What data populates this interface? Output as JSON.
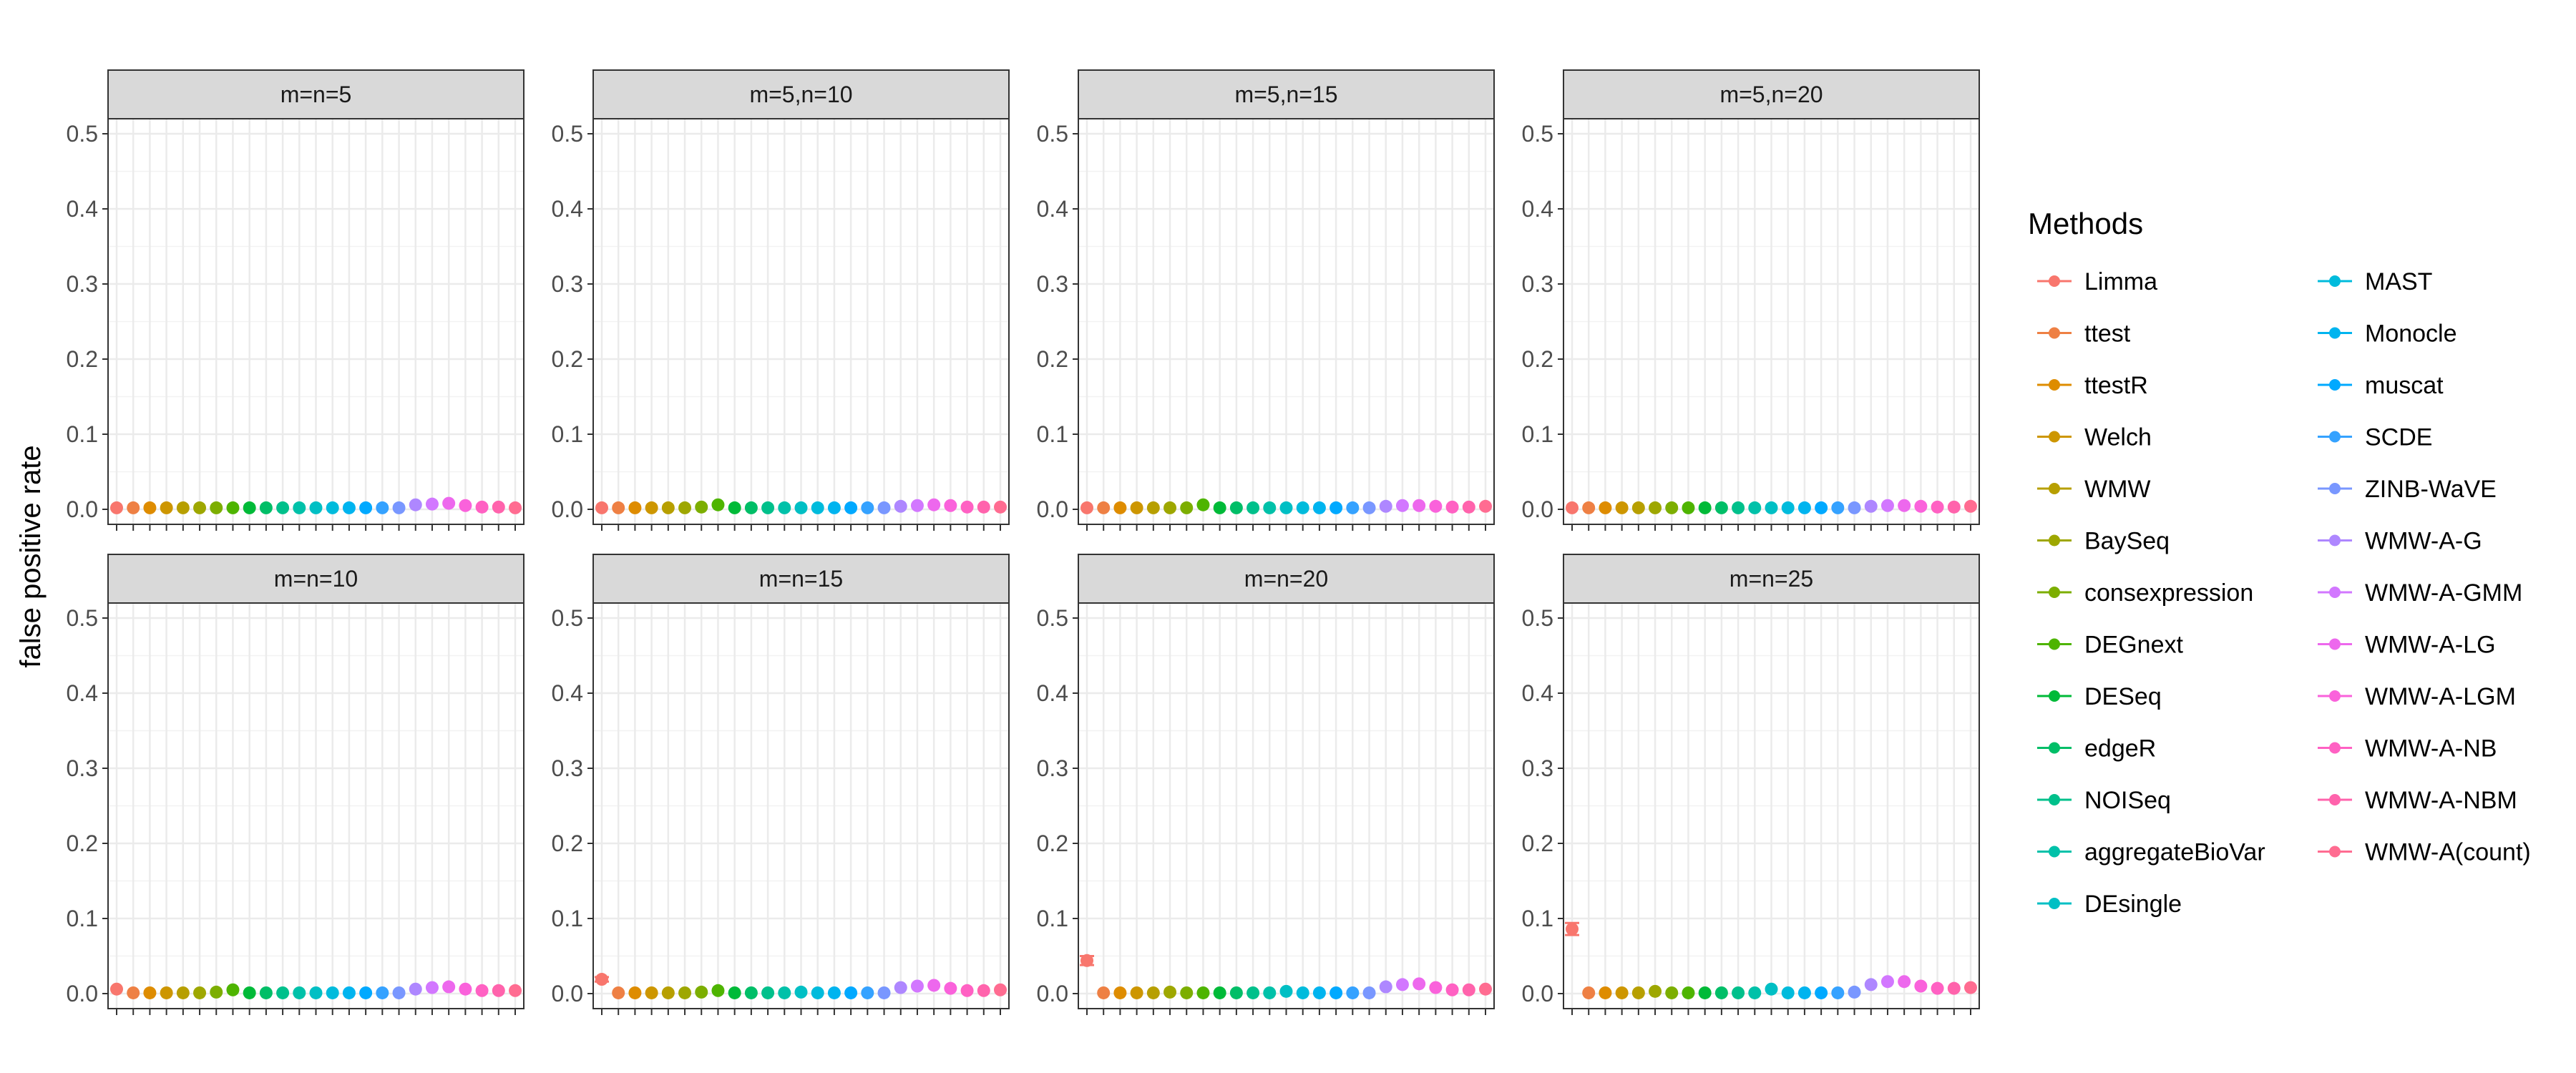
{
  "chart_data": {
    "type": "scatter",
    "ylabel": "false positive rate",
    "xlabel": "",
    "ylim": [
      -0.02,
      0.52
    ],
    "yticks": [
      0.0,
      0.1,
      0.2,
      0.3,
      0.4,
      0.5
    ],
    "ytick_labels": [
      "0.0",
      "0.1",
      "0.2",
      "0.3",
      "0.4",
      "0.5"
    ],
    "grid": true,
    "legend_title": "Methods",
    "legend_position": "right",
    "methods": [
      "Limma",
      "ttest",
      "ttestR",
      "Welch",
      "WMW",
      "BaySeq",
      "consexpression",
      "DEGnext",
      "DESeq",
      "edgeR",
      "NOISeq",
      "aggregateBioVar",
      "DEsingle",
      "MAST",
      "Monocle",
      "muscat",
      "SCDE",
      "ZINB-WaVE",
      "WMW-A-G",
      "WMW-A-GMM",
      "WMW-A-LG",
      "WMW-A-LGM",
      "WMW-A-NB",
      "WMW-A-NBM",
      "WMW-A(count)"
    ],
    "colors": [
      "#F8766D",
      "#EE8044",
      "#DE8C00",
      "#CD9600",
      "#B79F00",
      "#9EA700",
      "#7CAE00",
      "#4EB400",
      "#00BA38",
      "#00BE67",
      "#00C08B",
      "#00C1A9",
      "#00BFC4",
      "#00BBDC",
      "#00B4EF",
      "#00A9FF",
      "#35A2FF",
      "#7997FF",
      "#AE87FF",
      "#D277FF",
      "#ED68ED",
      "#FA62DB",
      "#FF61C3",
      "#FF63AC",
      "#FF6C91"
    ],
    "panels": [
      {
        "title": "m=n=5",
        "values": [
          0.002,
          0.002,
          0.002,
          0.002,
          0.002,
          0.002,
          0.002,
          0.002,
          0.002,
          0.002,
          0.002,
          0.002,
          0.002,
          0.002,
          0.002,
          0.002,
          0.002,
          0.002,
          0.006,
          0.007,
          0.008,
          0.005,
          0.003,
          0.003,
          0.002
        ],
        "error": [
          0,
          0,
          0,
          0,
          0,
          0,
          0,
          0,
          0,
          0,
          0,
          0,
          0,
          0,
          0,
          0,
          0,
          0,
          0,
          0,
          0,
          0,
          0,
          0,
          0
        ]
      },
      {
        "title": "m=5,n=10",
        "values": [
          0.002,
          0.002,
          0.002,
          0.002,
          0.002,
          0.002,
          0.003,
          0.006,
          0.002,
          0.002,
          0.002,
          0.002,
          0.002,
          0.002,
          0.002,
          0.002,
          0.002,
          0.002,
          0.004,
          0.005,
          0.006,
          0.005,
          0.003,
          0.003,
          0.003
        ],
        "error": [
          0,
          0,
          0,
          0,
          0,
          0,
          0,
          0,
          0,
          0,
          0,
          0,
          0,
          0,
          0,
          0,
          0,
          0,
          0,
          0,
          0,
          0,
          0,
          0,
          0
        ]
      },
      {
        "title": "m=5,n=15",
        "values": [
          0.002,
          0.002,
          0.002,
          0.002,
          0.002,
          0.002,
          0.002,
          0.006,
          0.002,
          0.002,
          0.002,
          0.002,
          0.002,
          0.002,
          0.002,
          0.002,
          0.002,
          0.002,
          0.004,
          0.005,
          0.005,
          0.004,
          0.003,
          0.003,
          0.004
        ],
        "error": [
          0,
          0,
          0,
          0,
          0,
          0,
          0,
          0,
          0,
          0,
          0,
          0,
          0,
          0,
          0,
          0,
          0,
          0,
          0,
          0,
          0,
          0,
          0,
          0,
          0
        ]
      },
      {
        "title": "m=5,n=20",
        "values": [
          0.002,
          0.002,
          0.002,
          0.002,
          0.002,
          0.002,
          0.002,
          0.002,
          0.002,
          0.002,
          0.002,
          0.002,
          0.002,
          0.002,
          0.002,
          0.002,
          0.002,
          0.002,
          0.004,
          0.005,
          0.005,
          0.004,
          0.003,
          0.003,
          0.004
        ],
        "error": [
          0,
          0,
          0,
          0,
          0,
          0,
          0,
          0,
          0,
          0,
          0,
          0,
          0,
          0,
          0,
          0,
          0,
          0,
          0,
          0,
          0,
          0,
          0,
          0,
          0
        ]
      },
      {
        "title": "m=n=10",
        "values": [
          0.006,
          0.001,
          0.001,
          0.001,
          0.001,
          0.001,
          0.002,
          0.005,
          0.001,
          0.001,
          0.001,
          0.001,
          0.001,
          0.001,
          0.001,
          0.001,
          0.001,
          0.001,
          0.006,
          0.008,
          0.009,
          0.006,
          0.004,
          0.004,
          0.004
        ],
        "error": [
          0,
          0,
          0,
          0,
          0,
          0,
          0,
          0,
          0,
          0,
          0,
          0,
          0,
          0,
          0,
          0,
          0,
          0,
          0,
          0,
          0,
          0,
          0,
          0,
          0
        ]
      },
      {
        "title": "m=n=15",
        "values": [
          0.019,
          0.001,
          0.001,
          0.001,
          0.001,
          0.001,
          0.002,
          0.004,
          0.001,
          0.001,
          0.001,
          0.001,
          0.002,
          0.001,
          0.001,
          0.001,
          0.001,
          0.001,
          0.008,
          0.01,
          0.011,
          0.007,
          0.004,
          0.004,
          0.005
        ],
        "error": [
          0.003,
          0,
          0,
          0,
          0,
          0,
          0,
          0,
          0,
          0,
          0,
          0,
          0,
          0,
          0,
          0,
          0,
          0,
          0,
          0,
          0,
          0,
          0,
          0,
          0
        ]
      },
      {
        "title": "m=n=20",
        "values": [
          0.044,
          0.001,
          0.001,
          0.001,
          0.001,
          0.002,
          0.001,
          0.001,
          0.001,
          0.001,
          0.001,
          0.001,
          0.003,
          0.001,
          0.001,
          0.001,
          0.001,
          0.001,
          0.009,
          0.012,
          0.013,
          0.008,
          0.005,
          0.005,
          0.006
        ],
        "error": [
          0.006,
          0,
          0,
          0,
          0,
          0,
          0,
          0,
          0,
          0,
          0,
          0,
          0,
          0,
          0,
          0,
          0,
          0,
          0,
          0,
          0,
          0,
          0,
          0,
          0
        ]
      },
      {
        "title": "m=n=25",
        "values": [
          0.086,
          0.001,
          0.001,
          0.001,
          0.001,
          0.003,
          0.001,
          0.001,
          0.001,
          0.001,
          0.001,
          0.001,
          0.006,
          0.001,
          0.001,
          0.001,
          0.001,
          0.002,
          0.012,
          0.016,
          0.016,
          0.01,
          0.007,
          0.007,
          0.008
        ],
        "error": [
          0.008,
          0,
          0,
          0,
          0,
          0,
          0,
          0,
          0,
          0,
          0,
          0,
          0,
          0,
          0,
          0,
          0,
          0,
          0,
          0,
          0,
          0,
          0,
          0,
          0
        ]
      }
    ]
  }
}
